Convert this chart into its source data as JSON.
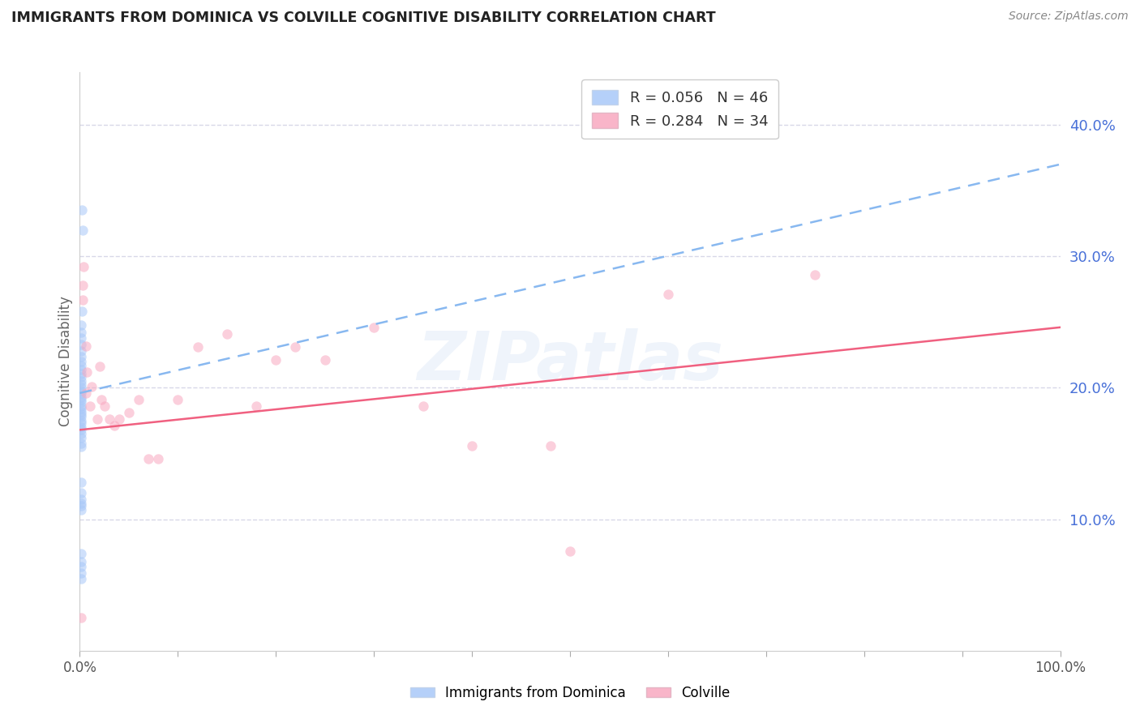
{
  "title": "IMMIGRANTS FROM DOMINICA VS COLVILLE COGNITIVE DISABILITY CORRELATION CHART",
  "source": "Source: ZipAtlas.com",
  "ylabel": "Cognitive Disability",
  "right_yticklabels": [
    "",
    "10.0%",
    "20.0%",
    "30.0%",
    "40.0%"
  ],
  "right_yticks": [
    0.0,
    0.1,
    0.2,
    0.3,
    0.4
  ],
  "xlim": [
    0.0,
    1.0
  ],
  "ylim": [
    0.0,
    0.44
  ],
  "watermark": "ZIPatlas",
  "legend_entry_blue": "R = 0.056   N = 46",
  "legend_entry_pink": "R = 0.284   N = 34",
  "blue_color": "#a8c8f8",
  "pink_color": "#f8a8c0",
  "blue_line_color": "#88b8f0",
  "pink_line_color": "#f06080",
  "background_color": "#ffffff",
  "grid_color": "#d8d8e8",
  "title_color": "#222222",
  "right_axis_color": "#4870d8",
  "scatter_size": 80,
  "scatter_alpha": 0.55,
  "blue_scatter_x": [
    0.002,
    0.003,
    0.002,
    0.001,
    0.001,
    0.001,
    0.001,
    0.001,
    0.001,
    0.001,
    0.001,
    0.001,
    0.001,
    0.001,
    0.001,
    0.001,
    0.001,
    0.001,
    0.001,
    0.001,
    0.001,
    0.001,
    0.001,
    0.001,
    0.001,
    0.001,
    0.001,
    0.001,
    0.001,
    0.001,
    0.001,
    0.001,
    0.001,
    0.001,
    0.001,
    0.001,
    0.001,
    0.001,
    0.001,
    0.001,
    0.001,
    0.001,
    0.001,
    0.001,
    0.001,
    0.001
  ],
  "blue_scatter_y": [
    0.335,
    0.32,
    0.258,
    0.248,
    0.242,
    0.238,
    0.233,
    0.228,
    0.224,
    0.22,
    0.217,
    0.214,
    0.211,
    0.208,
    0.205,
    0.203,
    0.2,
    0.198,
    0.196,
    0.193,
    0.191,
    0.189,
    0.186,
    0.184,
    0.182,
    0.18,
    0.178,
    0.175,
    0.173,
    0.17,
    0.168,
    0.165,
    0.162,
    0.158,
    0.155,
    0.128,
    0.12,
    0.115,
    0.112,
    0.11,
    0.107,
    0.074,
    0.068,
    0.064,
    0.059,
    0.055
  ],
  "pink_scatter_x": [
    0.001,
    0.003,
    0.004,
    0.003,
    0.006,
    0.007,
    0.006,
    0.01,
    0.012,
    0.018,
    0.02,
    0.022,
    0.025,
    0.03,
    0.035,
    0.04,
    0.05,
    0.06,
    0.07,
    0.08,
    0.1,
    0.12,
    0.15,
    0.18,
    0.2,
    0.22,
    0.25,
    0.3,
    0.35,
    0.4,
    0.48,
    0.5,
    0.6,
    0.75
  ],
  "pink_scatter_y": [
    0.025,
    0.278,
    0.292,
    0.267,
    0.232,
    0.212,
    0.196,
    0.186,
    0.201,
    0.176,
    0.216,
    0.191,
    0.186,
    0.176,
    0.171,
    0.176,
    0.181,
    0.191,
    0.146,
    0.146,
    0.191,
    0.231,
    0.241,
    0.186,
    0.221,
    0.231,
    0.221,
    0.246,
    0.186,
    0.156,
    0.156,
    0.076,
    0.271,
    0.286
  ],
  "blue_line_x": [
    0.0,
    1.0
  ],
  "blue_line_y": [
    0.196,
    0.37
  ],
  "pink_line_x": [
    0.0,
    1.0
  ],
  "pink_line_y": [
    0.168,
    0.246
  ]
}
